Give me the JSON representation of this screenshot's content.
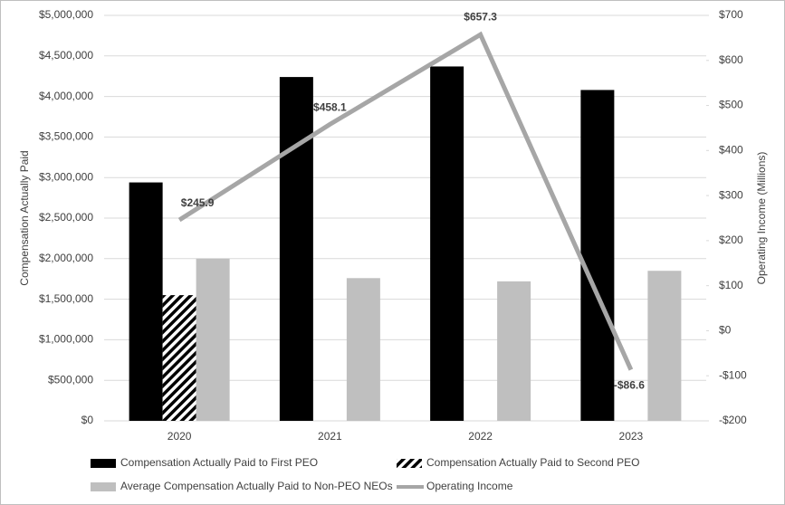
{
  "chart_data": {
    "type": "bar",
    "categories": [
      "2020",
      "2021",
      "2022",
      "2023"
    ],
    "y_label": "Compensation Actually Paid",
    "y2_label": "Operating Income (Millions)",
    "ylim": [
      0,
      5000000
    ],
    "yticks": [
      {
        "value": 0,
        "label": "$0"
      },
      {
        "value": 500000,
        "label": "$500,000"
      },
      {
        "value": 1000000,
        "label": "$1,000,000"
      },
      {
        "value": 1500000,
        "label": "$1,500,000"
      },
      {
        "value": 2000000,
        "label": "$2,000,000"
      },
      {
        "value": 2500000,
        "label": "$2,500,000"
      },
      {
        "value": 3000000,
        "label": "$3,000,000"
      },
      {
        "value": 3500000,
        "label": "$3,500,000"
      },
      {
        "value": 4000000,
        "label": "$4,000,000"
      },
      {
        "value": 4500000,
        "label": "$4,500,000"
      },
      {
        "value": 5000000,
        "label": "$5,000,000"
      }
    ],
    "y2lim": [
      -200,
      700
    ],
    "y2ticks": [
      {
        "value": -200,
        "label": "-$200"
      },
      {
        "value": -100,
        "label": "-$100"
      },
      {
        "value": 0,
        "label": "$0"
      },
      {
        "value": 100,
        "label": "$100"
      },
      {
        "value": 200,
        "label": "$200"
      },
      {
        "value": 300,
        "label": "$300"
      },
      {
        "value": 400,
        "label": "$400"
      },
      {
        "value": 500,
        "label": "$500"
      },
      {
        "value": 600,
        "label": "$600"
      },
      {
        "value": 700,
        "label": "$700"
      }
    ],
    "grid": true,
    "series": [
      {
        "name": "Compensation Actually Paid to First PEO",
        "type": "bar",
        "color": "#000000",
        "values": [
          2940000,
          4240000,
          4370000,
          4080000
        ]
      },
      {
        "name": "Compensation Actually Paid to Second PEO",
        "type": "bar",
        "color": "#000000",
        "pattern": "diagonal-stripes",
        "values": [
          1550000,
          null,
          null,
          null
        ]
      },
      {
        "name": "Average Compensation Actually Paid to Non-PEO NEOs",
        "type": "bar",
        "color": "#bfbfbf",
        "values": [
          2000000,
          1760000,
          1720000,
          1850000
        ]
      },
      {
        "name": "Operating Income",
        "type": "line",
        "axis": "y2",
        "color": "#a6a6a6",
        "values": [
          245.9,
          458.1,
          657.3,
          -86.6
        ],
        "value_labels": [
          "$245.9",
          "$458.1",
          "$657.3",
          "-$86.6"
        ]
      }
    ]
  }
}
